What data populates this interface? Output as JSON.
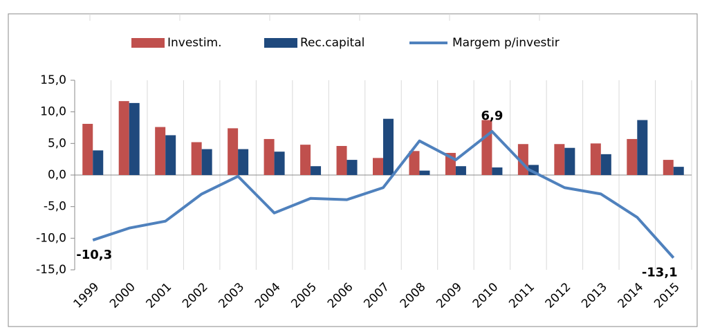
{
  "chart_data": {
    "type": "bar-line",
    "categories": [
      "1999",
      "2000",
      "2001",
      "2002",
      "2003",
      "2004",
      "2005",
      "2006",
      "2007",
      "2008",
      "2009",
      "2010",
      "2011",
      "2012",
      "2013",
      "2014",
      "2015"
    ],
    "series": [
      {
        "name": "Investim.",
        "type": "bar",
        "color": "#c0504d",
        "values": [
          8.1,
          11.7,
          7.6,
          5.2,
          7.4,
          5.7,
          4.8,
          4.6,
          2.7,
          3.8,
          3.5,
          8.7,
          4.9,
          4.9,
          5.0,
          5.7,
          2.4
        ]
      },
      {
        "name": "Rec.capital",
        "type": "bar",
        "color": "#1f497d",
        "values": [
          3.9,
          11.4,
          6.3,
          4.1,
          4.1,
          3.7,
          1.4,
          2.4,
          8.9,
          0.7,
          1.4,
          1.2,
          1.6,
          4.3,
          3.3,
          8.7,
          1.3
        ]
      },
      {
        "name": "Margem p/investir",
        "type": "line",
        "color": "#4f81bd",
        "values": [
          -10.3,
          -8.4,
          -7.3,
          -3.0,
          -0.2,
          -6.0,
          -3.7,
          -3.9,
          -2.0,
          5.4,
          2.4,
          6.9,
          0.9,
          -2.0,
          -3.0,
          -6.7,
          -13.1
        ],
        "value_labels": [
          "-10,3",
          null,
          null,
          null,
          null,
          null,
          null,
          null,
          null,
          null,
          null,
          "6,9",
          null,
          null,
          null,
          null,
          "-13,1"
        ]
      }
    ],
    "ylim": [
      -15,
      15
    ],
    "yticks": [
      {
        "value": -15,
        "label": "-15,0"
      },
      {
        "value": -10,
        "label": "-10,0"
      },
      {
        "value": -5,
        "label": "-5,0"
      },
      {
        "value": 0,
        "label": "0,0"
      },
      {
        "value": 5,
        "label": "5,0"
      },
      {
        "value": 10,
        "label": "10,0"
      },
      {
        "value": 15,
        "label": "15,0"
      }
    ],
    "legend": "top"
  }
}
